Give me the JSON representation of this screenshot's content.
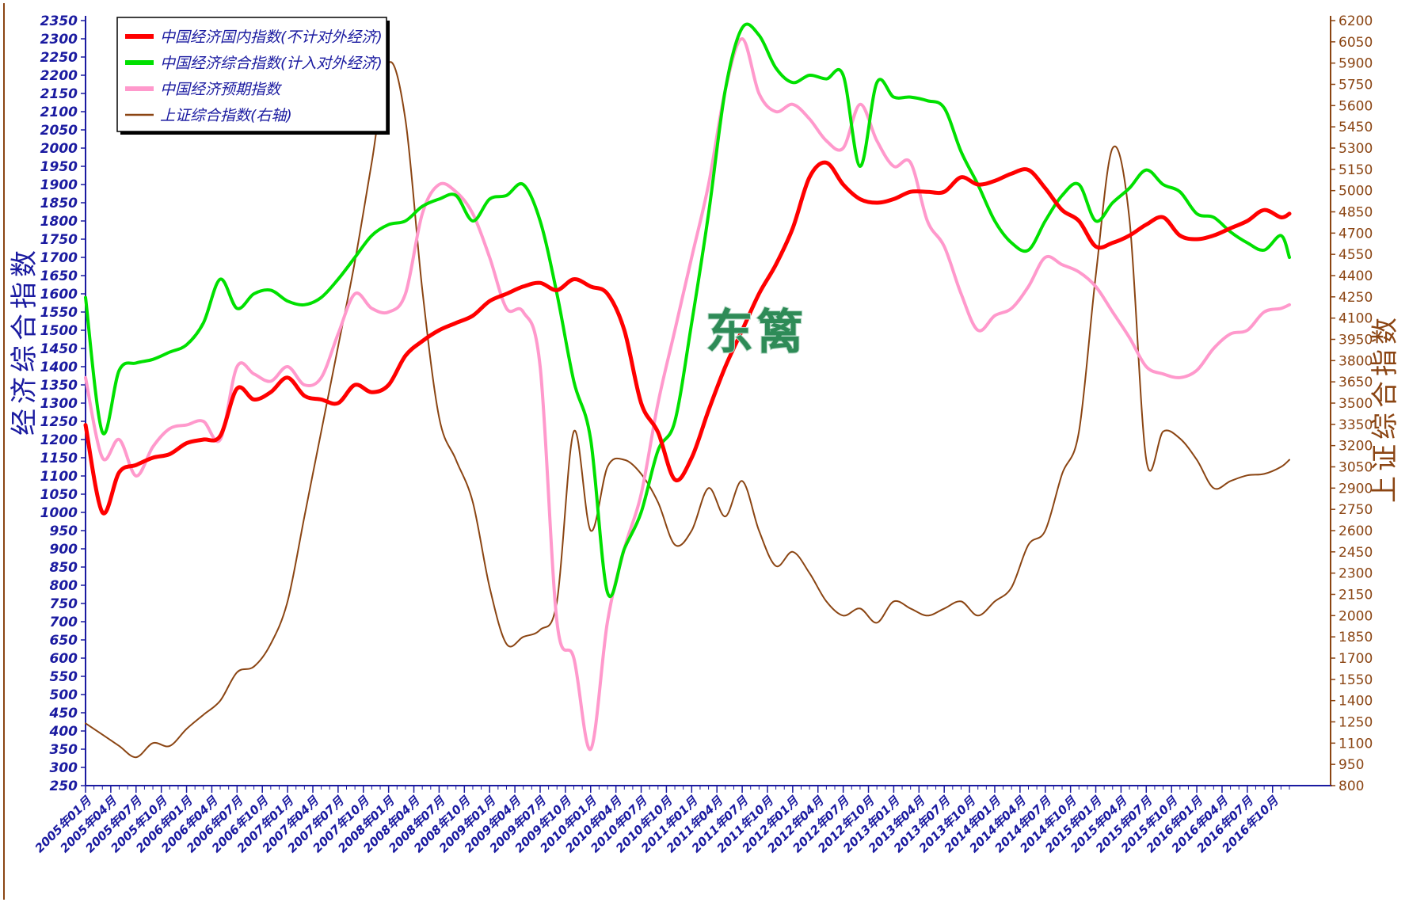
{
  "chart_data": {
    "type": "line",
    "title": "",
    "watermark": "东篱",
    "y_left_label": "经济综合指数",
    "y_right_label": "上证综合指数",
    "y_left_ticks": [
      "2350",
      "2300",
      "2250",
      "2200",
      "2150",
      "2100",
      "2050",
      "2000",
      "1950",
      "1900",
      "1850",
      "1800",
      "1750",
      "1700",
      "1650",
      "1600",
      "1550",
      "1500",
      "1450",
      "1400",
      "1350",
      "1300",
      "1250",
      "1200",
      "1150",
      "1100",
      "1050",
      "1000",
      "950",
      "900",
      "850",
      "800",
      "750",
      "700",
      "650",
      "600",
      "550",
      "500",
      "450",
      "400",
      "350",
      "300",
      "250"
    ],
    "y_right_ticks": [
      "6200",
      "6050",
      "5900",
      "5750",
      "5600",
      "5450",
      "5300",
      "5150",
      "5000",
      "4850",
      "4700",
      "4550",
      "4400",
      "4250",
      "4100",
      "3950",
      "3800",
      "3650",
      "3500",
      "3350",
      "3200",
      "3050",
      "2900",
      "2750",
      "2600",
      "2450",
      "2300",
      "2150",
      "2000",
      "1850",
      "1700",
      "1550",
      "1400",
      "1250",
      "1100",
      "950",
      "800"
    ],
    "y_left_range": [
      250,
      2350
    ],
    "y_right_range": [
      800,
      6200
    ],
    "x_tick_labels": [
      "2005年01月",
      "2005年04月",
      "2005年07月",
      "2005年10月",
      "2006年01月",
      "2006年04月",
      "2006年07月",
      "2006年10月",
      "2007年01月",
      "2007年04月",
      "2007年07月",
      "2007年10月",
      "2008年01月",
      "2008年04月",
      "2008年07月",
      "2008年10月",
      "2009年01月",
      "2009年04月",
      "2009年07月",
      "2009年10月",
      "2010年01月",
      "2010年04月",
      "2010年07月",
      "2010年10月",
      "2011年01月",
      "2011年04月",
      "2011年07月",
      "2011年10月",
      "2012年01月",
      "2012年04月",
      "2012年07月",
      "2012年10月",
      "2013年01月",
      "2013年04月",
      "2013年07月",
      "2013年10月",
      "2014年01月",
      "2014年04月",
      "2014年07月",
      "2014年10月",
      "2015年01月",
      "2015年04月",
      "2015年07月",
      "2015年10月",
      "2016年01月",
      "2016年04月",
      "2016年07月",
      "2016年10月"
    ],
    "legend_position": "top-left",
    "grid": false,
    "series": [
      {
        "name": "中国经济国内指数(不计对外经济)",
        "axis": "left",
        "color": "#ff0000",
        "x": [
          0,
          2,
          4,
          6,
          8,
          10,
          12,
          14,
          16,
          18,
          20,
          22,
          24,
          26,
          28,
          30,
          32,
          34,
          36,
          38,
          40,
          42,
          44,
          46,
          48,
          50,
          52,
          54,
          56,
          58,
          60,
          62,
          64,
          66,
          68,
          70,
          72,
          74,
          76,
          78,
          80,
          82,
          84,
          86,
          88,
          90,
          92,
          94,
          96,
          98,
          100,
          102,
          104,
          106,
          108,
          110,
          112,
          114,
          116,
          118,
          120,
          122,
          124,
          126,
          128,
          130,
          132,
          134,
          136,
          138,
          140,
          142,
          143
        ],
        "values": [
          1240,
          1000,
          1110,
          1130,
          1150,
          1160,
          1190,
          1200,
          1210,
          1340,
          1310,
          1330,
          1370,
          1320,
          1310,
          1300,
          1350,
          1330,
          1350,
          1430,
          1470,
          1500,
          1520,
          1540,
          1580,
          1600,
          1620,
          1630,
          1610,
          1640,
          1620,
          1600,
          1500,
          1300,
          1220,
          1090,
          1150,
          1280,
          1400,
          1500,
          1600,
          1680,
          1780,
          1920,
          1960,
          1900,
          1860,
          1850,
          1860,
          1880,
          1880,
          1880,
          1920,
          1900,
          1910,
          1930,
          1940,
          1890,
          1830,
          1800,
          1730,
          1740,
          1760,
          1790,
          1810,
          1760,
          1750,
          1760,
          1780,
          1800,
          1830,
          1810,
          1820
        ]
      },
      {
        "name": "中国经济综合指数(计入对外经济)",
        "axis": "left",
        "color": "#00e000",
        "x": [
          0,
          2,
          4,
          6,
          8,
          10,
          12,
          14,
          16,
          18,
          20,
          22,
          24,
          26,
          28,
          30,
          32,
          34,
          36,
          38,
          40,
          42,
          44,
          46,
          48,
          50,
          52,
          54,
          56,
          58,
          60,
          62,
          64,
          66,
          68,
          70,
          72,
          74,
          76,
          78,
          80,
          82,
          84,
          86,
          88,
          90,
          92,
          94,
          96,
          98,
          100,
          102,
          104,
          106,
          108,
          110,
          112,
          114,
          116,
          118,
          120,
          122,
          124,
          126,
          128,
          130,
          132,
          134,
          136,
          138,
          140,
          142,
          143
        ],
        "values": [
          1590,
          1220,
          1390,
          1410,
          1420,
          1440,
          1460,
          1520,
          1640,
          1560,
          1600,
          1610,
          1580,
          1570,
          1590,
          1640,
          1700,
          1760,
          1790,
          1800,
          1840,
          1860,
          1870,
          1800,
          1860,
          1870,
          1900,
          1800,
          1600,
          1360,
          1200,
          780,
          900,
          1000,
          1170,
          1250,
          1520,
          1820,
          2160,
          2330,
          2310,
          2220,
          2180,
          2200,
          2190,
          2200,
          1950,
          2180,
          2140,
          2140,
          2130,
          2110,
          1990,
          1900,
          1800,
          1740,
          1720,
          1800,
          1870,
          1900,
          1800,
          1850,
          1890,
          1940,
          1900,
          1880,
          1820,
          1810,
          1770,
          1740,
          1720,
          1760,
          1700
        ]
      },
      {
        "name": "中国经济预期指数",
        "axis": "left",
        "color": "#ff99cc",
        "x": [
          0,
          2,
          4,
          6,
          8,
          10,
          12,
          14,
          16,
          18,
          20,
          22,
          24,
          26,
          28,
          30,
          32,
          34,
          36,
          38,
          40,
          42,
          44,
          46,
          48,
          50,
          52,
          54,
          56,
          58,
          60,
          62,
          64,
          66,
          68,
          70,
          72,
          74,
          76,
          78,
          80,
          82,
          84,
          86,
          88,
          90,
          92,
          94,
          96,
          98,
          100,
          102,
          104,
          106,
          108,
          110,
          112,
          114,
          116,
          118,
          120,
          122,
          124,
          126,
          128,
          130,
          132,
          134,
          136,
          138,
          140,
          142,
          143
        ],
        "values": [
          1370,
          1150,
          1200,
          1100,
          1180,
          1230,
          1240,
          1250,
          1200,
          1400,
          1380,
          1360,
          1400,
          1350,
          1370,
          1490,
          1600,
          1560,
          1550,
          1600,
          1820,
          1900,
          1880,
          1820,
          1700,
          1560,
          1550,
          1400,
          700,
          600,
          350,
          700,
          900,
          1050,
          1300,
          1500,
          1700,
          1900,
          2160,
          2300,
          2150,
          2100,
          2120,
          2080,
          2020,
          2000,
          2120,
          2020,
          1950,
          1960,
          1800,
          1730,
          1600,
          1500,
          1540,
          1560,
          1620,
          1700,
          1680,
          1660,
          1620,
          1550,
          1480,
          1400,
          1380,
          1370,
          1390,
          1450,
          1490,
          1500,
          1550,
          1560,
          1570
        ]
      },
      {
        "name": "上证综合指数(右轴)",
        "axis": "right",
        "color": "#8B4513",
        "x": [
          0,
          2,
          4,
          6,
          8,
          10,
          12,
          14,
          16,
          18,
          20,
          22,
          24,
          26,
          28,
          30,
          32,
          34,
          36,
          38,
          40,
          42,
          44,
          46,
          48,
          50,
          52,
          54,
          56,
          58,
          60,
          62,
          64,
          66,
          68,
          70,
          72,
          74,
          76,
          78,
          80,
          82,
          84,
          86,
          88,
          90,
          92,
          94,
          96,
          98,
          100,
          102,
          104,
          106,
          108,
          110,
          112,
          114,
          116,
          118,
          120,
          122,
          124,
          126,
          128,
          130,
          132,
          134,
          136,
          138,
          140,
          142,
          143
        ],
        "values": [
          1240,
          1160,
          1080,
          1000,
          1100,
          1080,
          1200,
          1300,
          1400,
          1600,
          1640,
          1800,
          2100,
          2700,
          3300,
          3900,
          4500,
          5200,
          5900,
          5500,
          4300,
          3400,
          3100,
          2800,
          2200,
          1800,
          1850,
          1900,
          2100,
          3300,
          2600,
          3050,
          3100,
          3000,
          2800,
          2500,
          2600,
          2900,
          2700,
          2950,
          2600,
          2350,
          2450,
          2300,
          2100,
          2000,
          2050,
          1950,
          2100,
          2050,
          2000,
          2050,
          2100,
          2000,
          2100,
          2200,
          2500,
          2600,
          3000,
          3300,
          4400,
          5300,
          4800,
          3100,
          3300,
          3250,
          3100,
          2900,
          2950,
          2990,
          3000,
          3050,
          3100
        ]
      }
    ]
  }
}
